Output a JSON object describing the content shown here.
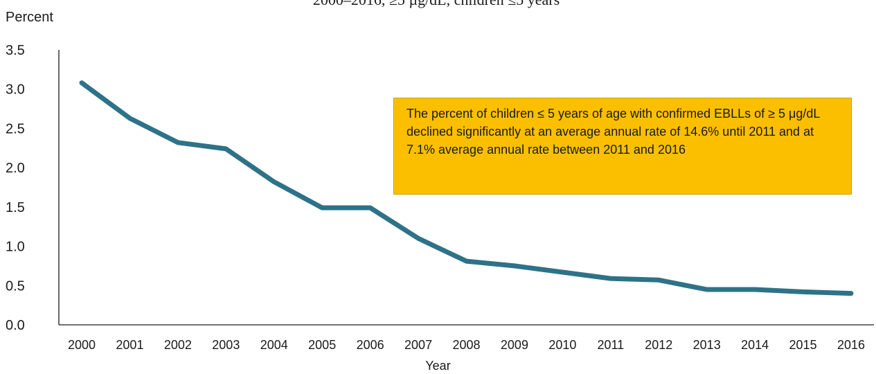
{
  "chart_data": {
    "type": "line",
    "title_fragment": "2000–2016, ≥5 µg/dL, children ≤5 years",
    "ylabel": "Percent",
    "xlabel": "Year",
    "ylim": [
      0,
      3.5
    ],
    "yticks": [
      "0.0",
      "0.5",
      "1.0",
      "1.5",
      "2.0",
      "2.5",
      "3.0",
      "3.5"
    ],
    "ytick_values": [
      0,
      0.5,
      1.0,
      1.5,
      2.0,
      2.5,
      3.0,
      3.5
    ],
    "categories": [
      "2000",
      "2001",
      "2002",
      "2003",
      "2004",
      "2005",
      "2006",
      "2007",
      "2008",
      "2009",
      "2010",
      "2011",
      "2012",
      "2013",
      "2014",
      "2015",
      "2016"
    ],
    "series": [
      {
        "values": [
          3.08,
          2.63,
          2.32,
          2.24,
          1.82,
          1.49,
          1.49,
          1.1,
          0.81,
          0.75,
          0.67,
          0.59,
          0.57,
          0.45,
          0.45,
          0.42,
          0.4
        ],
        "color": "#2e7288"
      }
    ],
    "grid": false,
    "annotation": "The percent of children ≤ 5 years of age with confirmed EBLLs of ≥ 5 μg/dL declined significantly at an average annual rate of 14.6% until 2011 and at 7.1% average annual rate between 2011 and 2016",
    "annotation_color": "#fcbf00"
  }
}
